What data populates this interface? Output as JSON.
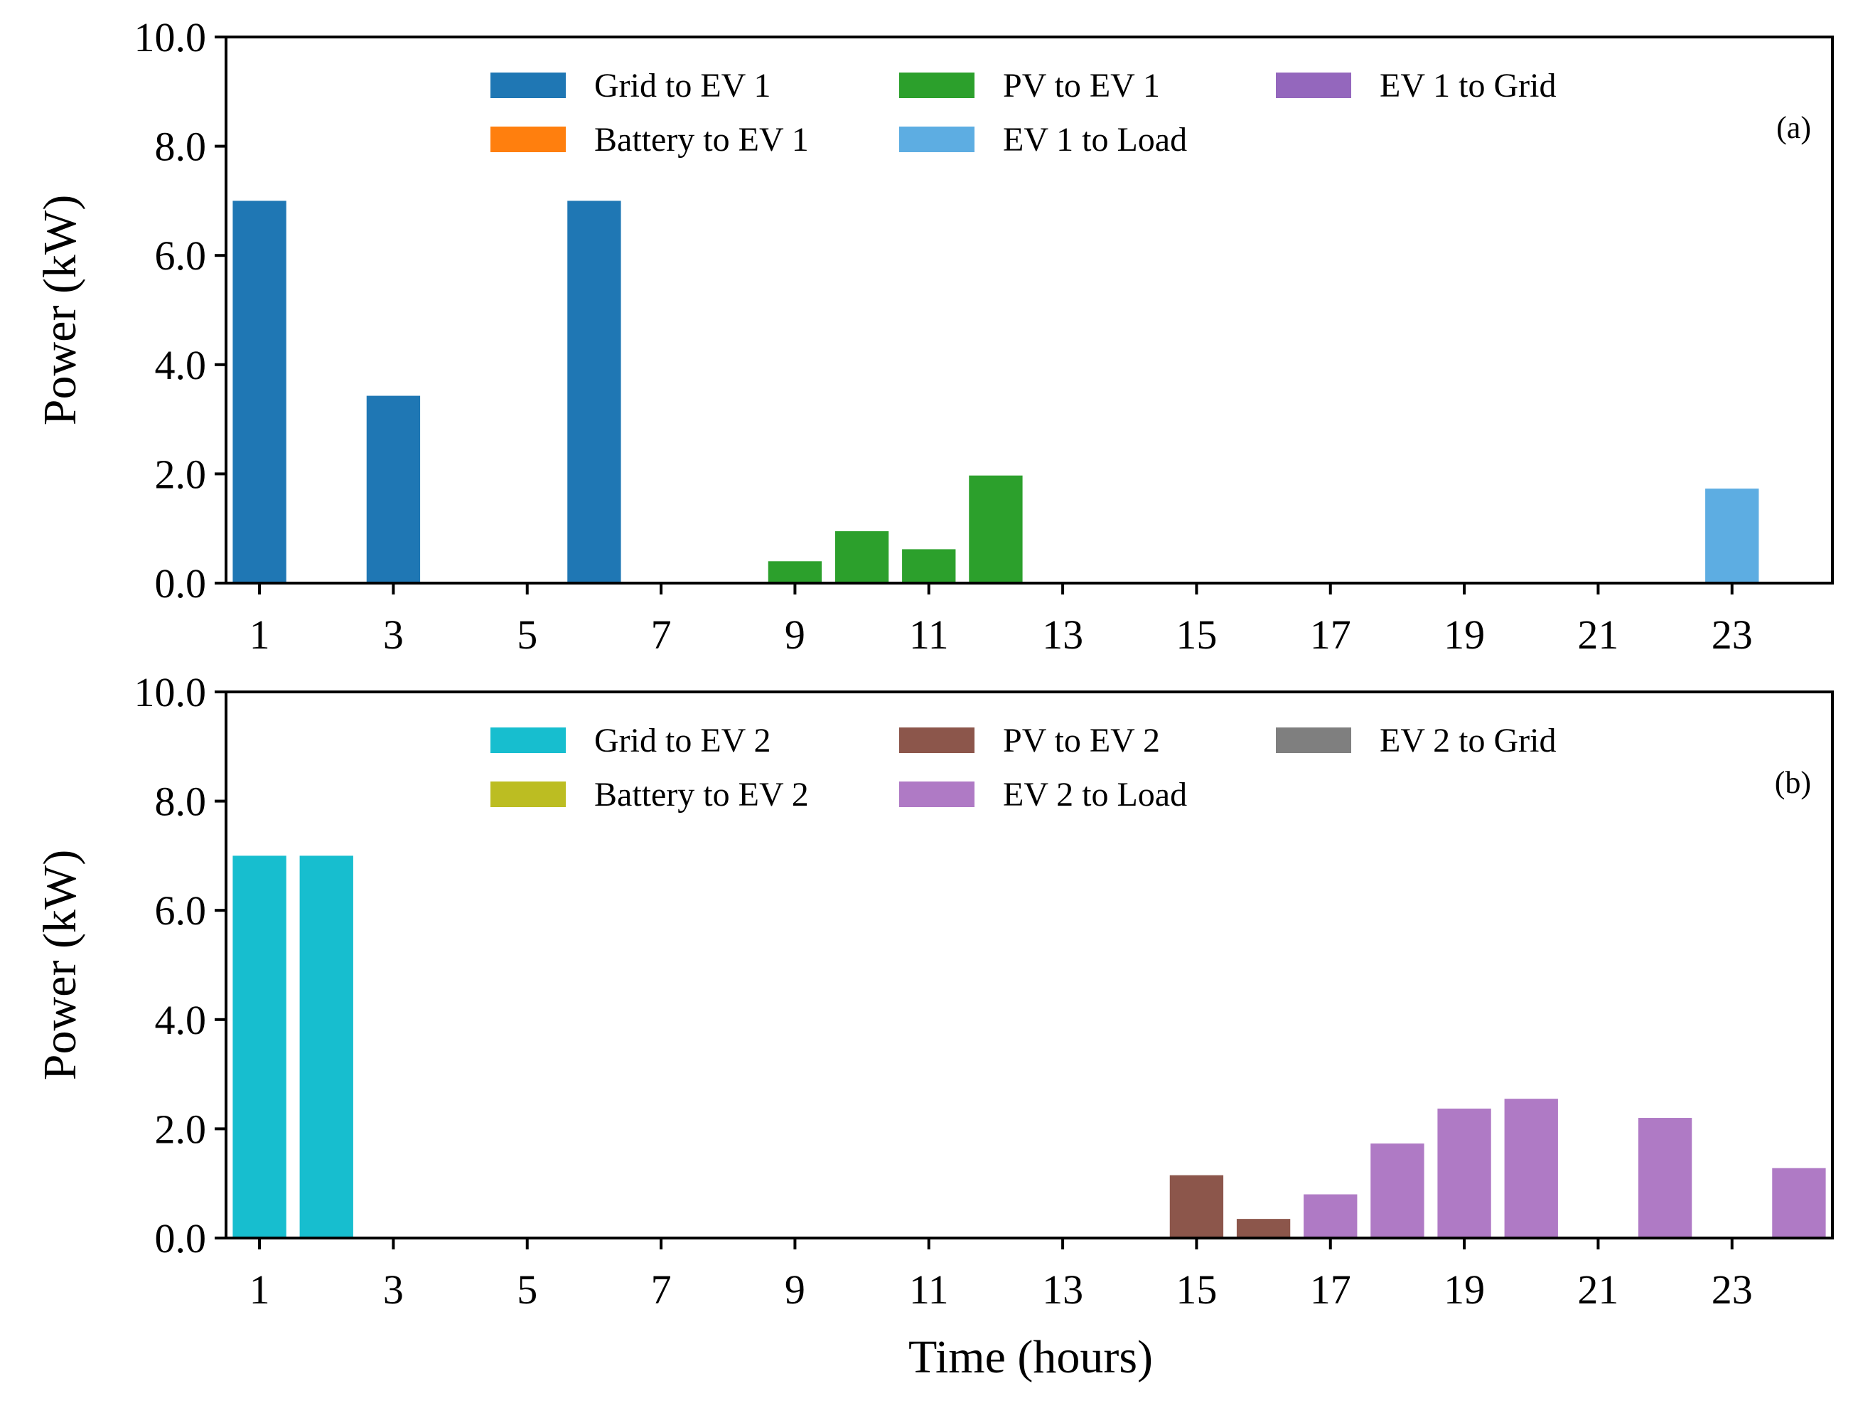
{
  "figure": {
    "xlabel": "Time (hours)"
  },
  "chart_data": [
    {
      "type": "bar",
      "panel_label": "(a)",
      "ylabel": "Power (kW)",
      "ylim": [
        0,
        10
      ],
      "yticks": [
        "0.0",
        "2.0",
        "4.0",
        "6.0",
        "8.0",
        "10.0"
      ],
      "xlim": [
        0.5,
        24.5
      ],
      "xticks": [
        "1",
        "3",
        "5",
        "7",
        "9",
        "11",
        "13",
        "15",
        "17",
        "19",
        "21",
        "23"
      ],
      "x": [
        1,
        2,
        3,
        4,
        5,
        6,
        7,
        8,
        9,
        10,
        11,
        12,
        13,
        14,
        15,
        16,
        17,
        18,
        19,
        20,
        21,
        22,
        23,
        24
      ],
      "legend": {
        "location": "top-center",
        "columns": 3
      },
      "series": [
        {
          "name": "Grid to EV 1",
          "color": "#1f77b4",
          "values": [
            7.0,
            0,
            3.43,
            0,
            0,
            7.0,
            0,
            0,
            0,
            0,
            0,
            0,
            0,
            0,
            0,
            0,
            0,
            0,
            0,
            0,
            0,
            0,
            0,
            0
          ]
        },
        {
          "name": "Battery to EV 1",
          "color": "#ff7f0e",
          "values": [
            0,
            0,
            0,
            0,
            0,
            0,
            0,
            0,
            0,
            0,
            0,
            0,
            0,
            0,
            0,
            0,
            0,
            0,
            0,
            0,
            0,
            0,
            0,
            0
          ]
        },
        {
          "name": "PV to EV 1",
          "color": "#2ca02c",
          "values": [
            0,
            0,
            0,
            0,
            0,
            0,
            0,
            0,
            0.4,
            0.95,
            0.62,
            1.97,
            0,
            0,
            0,
            0,
            0,
            0,
            0,
            0,
            0,
            0,
            0,
            0
          ]
        },
        {
          "name": "EV 1 to Load",
          "color": "#5dade2",
          "values": [
            0,
            0,
            0,
            0,
            0,
            0,
            0,
            0,
            0,
            0,
            0,
            0,
            0,
            0,
            0,
            0,
            0,
            0,
            0,
            0,
            0,
            0,
            1.73,
            0
          ]
        },
        {
          "name": "EV 1 to Grid",
          "color": "#9467bd",
          "values": [
            0,
            0,
            0,
            0,
            0,
            0,
            0,
            0,
            0,
            0,
            0,
            0,
            0,
            0,
            0,
            0,
            0,
            0,
            0,
            0,
            0,
            0,
            0,
            0
          ]
        }
      ]
    },
    {
      "type": "bar",
      "panel_label": "(b)",
      "ylabel": "Power (kW)",
      "ylim": [
        0,
        10
      ],
      "yticks": [
        "0.0",
        "2.0",
        "4.0",
        "6.0",
        "8.0",
        "10.0"
      ],
      "xlim": [
        0.5,
        24.5
      ],
      "xticks": [
        "1",
        "3",
        "5",
        "7",
        "9",
        "11",
        "13",
        "15",
        "17",
        "19",
        "21",
        "23"
      ],
      "x": [
        1,
        2,
        3,
        4,
        5,
        6,
        7,
        8,
        9,
        10,
        11,
        12,
        13,
        14,
        15,
        16,
        17,
        18,
        19,
        20,
        21,
        22,
        23,
        24
      ],
      "legend": {
        "location": "top-center",
        "columns": 3
      },
      "series": [
        {
          "name": "Grid to EV 2",
          "color": "#17becf",
          "values": [
            7.0,
            7.0,
            0,
            0,
            0,
            0,
            0,
            0,
            0,
            0,
            0,
            0,
            0,
            0,
            0,
            0,
            0,
            0,
            0,
            0,
            0,
            0,
            0,
            0
          ]
        },
        {
          "name": "Battery to EV 2",
          "color": "#bcbd22",
          "values": [
            0,
            0,
            0,
            0,
            0,
            0,
            0,
            0,
            0,
            0,
            0,
            0,
            0,
            0,
            0,
            0,
            0,
            0,
            0,
            0,
            0,
            0,
            0,
            0
          ]
        },
        {
          "name": "PV to EV 2",
          "color": "#8c564b",
          "values": [
            0,
            0,
            0,
            0,
            0,
            0,
            0,
            0,
            0,
            0,
            0,
            0,
            0,
            0,
            1.15,
            0.35,
            0,
            0,
            0,
            0,
            0,
            0,
            0,
            0
          ]
        },
        {
          "name": "EV 2 to Load",
          "color": "#af7ac5",
          "values": [
            0,
            0,
            0,
            0,
            0,
            0,
            0,
            0,
            0,
            0,
            0,
            0,
            0,
            0,
            0,
            0,
            0.8,
            1.73,
            2.37,
            2.55,
            0,
            2.2,
            0,
            1.28
          ]
        },
        {
          "name": "EV 2 to Grid",
          "color": "#7f7f7f",
          "values": [
            0,
            0,
            0,
            0,
            0,
            0,
            0,
            0,
            0,
            0,
            0,
            0,
            0,
            0,
            0,
            0,
            0,
            0,
            0,
            0,
            0,
            0,
            0,
            0
          ]
        }
      ]
    }
  ]
}
